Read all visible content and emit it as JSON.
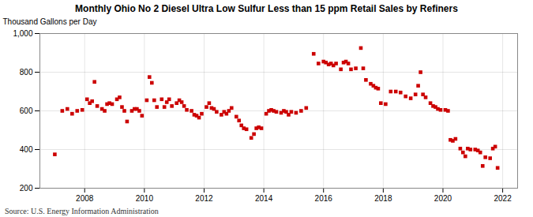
{
  "chart_data": {
    "type": "scatter",
    "title": "Monthly Ohio No 2 Diesel Ultra Low Sulfur Less than 15 ppm Retail Sales by Refiners",
    "ylabel": "Thousand Gallons per Day",
    "source": "Source: U.S. Energy Information Administration",
    "color": "#cc0000",
    "marker": "square",
    "grid": true,
    "xlim": [
      2006.5,
      2022.5
    ],
    "xticks": [
      2008,
      2010,
      2012,
      2014,
      2016,
      2018,
      2020,
      2022
    ],
    "ylim": [
      200,
      1000
    ],
    "yticks": [
      200,
      400,
      600,
      800,
      {
        "value": 1000,
        "label": "1,000"
      }
    ],
    "x": [
      2007.0,
      2007.25,
      2007.42,
      2007.58,
      2007.75,
      2007.92,
      2008.08,
      2008.17,
      2008.25,
      2008.33,
      2008.42,
      2008.58,
      2008.67,
      2008.75,
      2008.83,
      2008.92,
      2009.08,
      2009.17,
      2009.25,
      2009.33,
      2009.42,
      2009.58,
      2009.67,
      2009.75,
      2009.83,
      2009.92,
      2010.08,
      2010.17,
      2010.25,
      2010.33,
      2010.42,
      2010.58,
      2010.67,
      2010.75,
      2010.83,
      2010.92,
      2011.08,
      2011.17,
      2011.25,
      2011.33,
      2011.42,
      2011.58,
      2011.67,
      2011.75,
      2011.83,
      2011.92,
      2012.08,
      2012.17,
      2012.25,
      2012.33,
      2012.42,
      2012.58,
      2012.67,
      2012.75,
      2012.83,
      2012.92,
      2013.08,
      2013.17,
      2013.25,
      2013.33,
      2013.42,
      2013.58,
      2013.67,
      2013.75,
      2013.83,
      2013.92,
      2014.08,
      2014.17,
      2014.25,
      2014.33,
      2014.42,
      2014.58,
      2014.67,
      2014.75,
      2014.83,
      2014.92,
      2015.08,
      2015.25,
      2015.42,
      2015.67,
      2015.83,
      2016.0,
      2016.08,
      2016.17,
      2016.25,
      2016.33,
      2016.42,
      2016.58,
      2016.67,
      2016.75,
      2016.83,
      2016.92,
      2017.08,
      2017.25,
      2017.33,
      2017.42,
      2017.58,
      2017.67,
      2017.75,
      2017.83,
      2017.92,
      2018.08,
      2018.25,
      2018.42,
      2018.58,
      2018.75,
      2018.92,
      2019.08,
      2019.17,
      2019.25,
      2019.33,
      2019.42,
      2019.58,
      2019.67,
      2019.75,
      2019.83,
      2019.92,
      2020.08,
      2020.17,
      2020.25,
      2020.33,
      2020.42,
      2020.58,
      2020.67,
      2020.75,
      2020.83,
      2020.92,
      2021.08,
      2021.17,
      2021.25,
      2021.33,
      2021.42,
      2021.58,
      2021.67,
      2021.75,
      2021.83
    ],
    "values": [
      375,
      600,
      610,
      585,
      600,
      605,
      660,
      640,
      650,
      750,
      625,
      610,
      600,
      635,
      640,
      635,
      660,
      670,
      620,
      600,
      545,
      600,
      610,
      610,
      600,
      575,
      655,
      775,
      745,
      655,
      620,
      660,
      620,
      645,
      660,
      625,
      640,
      655,
      645,
      625,
      605,
      600,
      580,
      575,
      565,
      585,
      620,
      640,
      615,
      610,
      595,
      580,
      595,
      585,
      600,
      615,
      570,
      550,
      525,
      510,
      505,
      460,
      480,
      510,
      515,
      510,
      585,
      600,
      605,
      600,
      595,
      590,
      600,
      595,
      580,
      595,
      590,
      600,
      615,
      895,
      845,
      855,
      850,
      840,
      845,
      835,
      845,
      815,
      850,
      855,
      845,
      815,
      820,
      925,
      820,
      760,
      740,
      730,
      720,
      715,
      640,
      635,
      700,
      700,
      695,
      675,
      665,
      685,
      730,
      800,
      685,
      670,
      640,
      625,
      620,
      610,
      605,
      605,
      600,
      450,
      445,
      455,
      405,
      385,
      365,
      405,
      400,
      400,
      395,
      385,
      315,
      360,
      355,
      405,
      415,
      305
    ]
  }
}
